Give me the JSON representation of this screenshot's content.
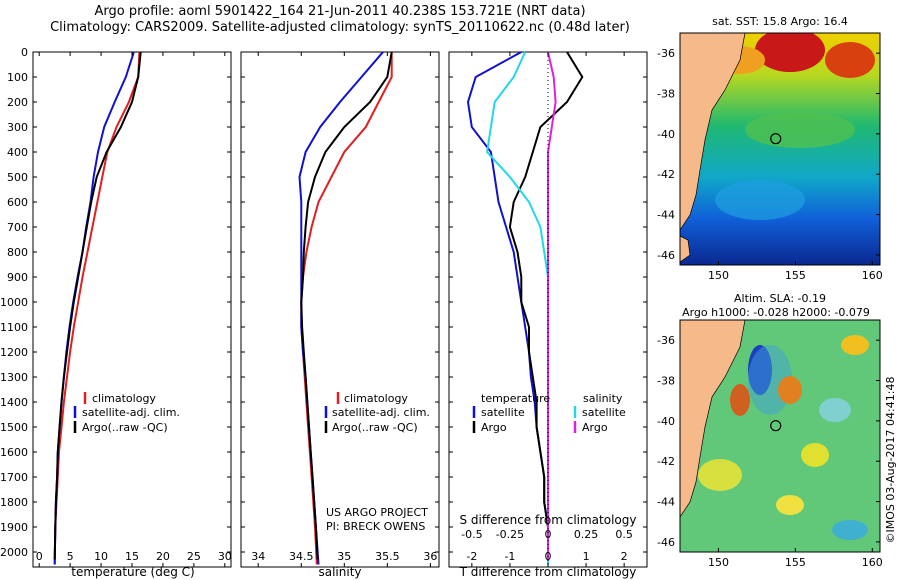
{
  "title": {
    "line1": "Argo profile: aoml 5901422_164 21-Jun-2011 40.238S 153.721E (NRT data)",
    "line2": "Climatology: CARS2009. Satellite-adjusted climatology: synTS_20110622.nc (0.48d later)"
  },
  "colors": {
    "climatology": "#e02020",
    "satellite": "#1010d0",
    "argo": "#000000",
    "sal_satellite": "#20d8e8",
    "sal_argo": "#e020e0"
  },
  "depth_axis": {
    "ticks": [
      0,
      100,
      200,
      300,
      400,
      500,
      600,
      700,
      800,
      900,
      1000,
      1100,
      1200,
      1300,
      1400,
      1500,
      1600,
      1700,
      1800,
      1900,
      2000
    ],
    "lim": [
      0,
      2060
    ],
    "reversed": true
  },
  "legend": {
    "climatology": "climatology",
    "satellite": "satellite-adj. clim.",
    "argo": "Argo(..raw -QC)"
  },
  "legend3": {
    "temperature": "temperature",
    "salinity": "salinity",
    "t_satellite": "satellite",
    "t_argo": "Argo",
    "s_satellite": "satellite",
    "s_argo": "Argo"
  },
  "project": {
    "line1": "US ARGO PROJECT",
    "line2": "PI: BRECK OWENS"
  },
  "map1": {
    "title": "sat. SST: 15.8  Argo: 16.4",
    "lat_ticks": [
      "-36",
      "-38",
      "-40",
      "-42",
      "-44",
      "-46"
    ],
    "lon_ticks": [
      "150",
      "155",
      "160"
    ],
    "marker": {
      "lon": 153.721,
      "lat": -40.238
    }
  },
  "map2": {
    "title1": "Altim. SLA: -0.19",
    "title2": "Argo h1000: -0.028 h2000: -0.079",
    "lat_ticks": [
      "-36",
      "-38",
      "-40",
      "-42",
      "-44",
      "-46"
    ],
    "lon_ticks": [
      "150",
      "155",
      "160"
    ],
    "marker": {
      "lon": 153.721,
      "lat": -40.238
    }
  },
  "copyright": "©IMOS 03-Aug-2017 04:41:48",
  "chart_data": [
    {
      "type": "line",
      "xlabel": "temperature (deg C)",
      "ylabel": "",
      "xlim": [
        -1,
        31
      ],
      "xticks": [
        0,
        5,
        10,
        15,
        20,
        25,
        30
      ],
      "series": [
        {
          "name": "climatology",
          "x": [
            16.2,
            16.0,
            14.5,
            12.5,
            11.0,
            10.2,
            9.4,
            8.6,
            7.8,
            7.0,
            6.3,
            5.6,
            5.0,
            4.5,
            4.0,
            3.6,
            3.2,
            3.0,
            2.8,
            2.6,
            2.5
          ],
          "y": [
            0,
            100,
            200,
            300,
            400,
            500,
            600,
            700,
            800,
            900,
            1000,
            1100,
            1200,
            1300,
            1400,
            1500,
            1600,
            1700,
            1800,
            1900,
            2050
          ]
        },
        {
          "name": "satellite-adj. clim.",
          "x": [
            15.3,
            14.0,
            12.2,
            10.5,
            9.5,
            8.8,
            8.3,
            7.6,
            7.0,
            6.2,
            5.5,
            4.9,
            4.4,
            4.0,
            3.6,
            3.3,
            3.0,
            2.9,
            2.7,
            2.6,
            2.5
          ],
          "y": [
            0,
            100,
            200,
            300,
            400,
            500,
            600,
            700,
            800,
            900,
            1000,
            1100,
            1200,
            1300,
            1400,
            1500,
            1600,
            1700,
            1800,
            1900,
            2050
          ]
        },
        {
          "name": "Argo(..raw -QC)",
          "x": [
            16.4,
            16.0,
            15.0,
            13.2,
            10.9,
            9.3,
            8.4,
            7.7,
            7.0,
            6.3,
            5.6,
            5.0,
            4.5,
            4.0,
            3.6,
            3.3,
            3.0,
            2.9,
            2.7,
            2.6,
            2.5
          ],
          "y": [
            0,
            100,
            200,
            300,
            400,
            500,
            600,
            700,
            800,
            900,
            1000,
            1100,
            1200,
            1300,
            1400,
            1500,
            1600,
            1700,
            1800,
            1900,
            2030
          ]
        }
      ]
    },
    {
      "type": "line",
      "xlabel": "salinity",
      "ylabel": "",
      "xlim": [
        33.8,
        36.1
      ],
      "xticks": [
        34,
        34.5,
        35,
        35.5,
        36
      ],
      "series": [
        {
          "name": "climatology",
          "x": [
            35.55,
            35.55,
            35.4,
            35.25,
            35.0,
            34.85,
            34.7,
            34.62,
            34.56,
            34.52,
            34.5,
            34.5,
            34.52,
            34.54,
            34.56,
            34.58,
            34.6,
            34.62,
            34.64,
            34.66,
            34.68
          ],
          "y": [
            0,
            100,
            200,
            300,
            400,
            500,
            600,
            700,
            800,
            900,
            1000,
            1100,
            1200,
            1300,
            1400,
            1500,
            1600,
            1700,
            1800,
            1900,
            2050
          ]
        },
        {
          "name": "satellite-adj. clim.",
          "x": [
            35.45,
            35.2,
            34.95,
            34.72,
            34.55,
            34.48,
            34.5,
            34.5,
            34.5,
            34.5,
            34.5,
            34.5,
            34.52,
            34.55,
            34.57,
            34.59,
            34.61,
            34.63,
            34.65,
            34.67,
            34.7
          ],
          "y": [
            0,
            100,
            200,
            300,
            400,
            500,
            600,
            700,
            800,
            900,
            1000,
            1100,
            1200,
            1300,
            1400,
            1500,
            1600,
            1700,
            1800,
            1900,
            2050
          ]
        },
        {
          "name": "Argo(..raw -QC)",
          "x": [
            35.55,
            35.5,
            35.3,
            35.0,
            34.78,
            34.66,
            34.58,
            34.55,
            34.53,
            34.52,
            34.5,
            34.51,
            34.53,
            34.55,
            34.57,
            34.59,
            34.61,
            34.63,
            34.65,
            34.67,
            34.69
          ],
          "y": [
            0,
            100,
            200,
            300,
            400,
            500,
            600,
            700,
            800,
            900,
            1000,
            1100,
            1200,
            1300,
            1400,
            1500,
            1600,
            1700,
            1800,
            1900,
            2030
          ]
        }
      ]
    },
    {
      "type": "line",
      "xlabel": "T difference from climatology",
      "x2label": "S difference from climatology",
      "ylabel": "",
      "xlim": [
        -2.6,
        2.6
      ],
      "xticks": [
        -2,
        -1,
        0,
        1,
        2
      ],
      "x2ticks": [
        "-0.5",
        "-0.25",
        "0",
        "0.25",
        "0.5"
      ],
      "series": [
        {
          "name": "T satellite",
          "x": [
            -0.7,
            -1.9,
            -2.1,
            -2.0,
            -1.5,
            -1.4,
            -1.3,
            -1.1,
            -0.9,
            -0.8,
            -0.7,
            -0.6,
            -0.5,
            -0.45,
            -0.35,
            -0.3,
            -0.2,
            -0.1,
            -0.1,
            0,
            0
          ],
          "y": [
            0,
            100,
            200,
            300,
            400,
            500,
            600,
            700,
            800,
            900,
            1000,
            1100,
            1200,
            1300,
            1400,
            1500,
            1600,
            1700,
            1800,
            1900,
            2050
          ]
        },
        {
          "name": "T Argo",
          "x": [
            0.5,
            0.9,
            0.5,
            -0.2,
            -0.4,
            -0.6,
            -0.9,
            -1.0,
            -0.8,
            -0.7,
            -0.7,
            -0.5,
            -0.5,
            -0.4,
            -0.3,
            -0.3,
            -0.2,
            -0.1,
            -0.1,
            0,
            0
          ],
          "y": [
            0,
            100,
            200,
            300,
            400,
            500,
            600,
            700,
            800,
            900,
            1000,
            1100,
            1200,
            1300,
            1400,
            1500,
            1600,
            1700,
            1800,
            1900,
            2030
          ]
        },
        {
          "name": "S satellite",
          "x": [
            -0.6,
            -0.9,
            -1.4,
            -1.5,
            -1.6,
            -1.0,
            -0.5,
            -0.2,
            -0.1,
            0,
            0,
            0,
            0,
            0,
            0,
            0,
            0,
            0,
            0,
            0,
            0
          ],
          "y": [
            0,
            100,
            200,
            300,
            400,
            500,
            600,
            700,
            800,
            900,
            1000,
            1100,
            1200,
            1300,
            1400,
            1500,
            1600,
            1700,
            1800,
            1900,
            2050
          ]
        },
        {
          "name": "S Argo",
          "x": [
            0,
            0.15,
            0.2,
            0.1,
            0,
            0,
            0,
            0,
            0,
            0,
            0,
            0,
            0,
            0,
            0,
            0,
            0,
            0,
            0,
            0,
            0
          ],
          "y": [
            0,
            100,
            200,
            300,
            400,
            500,
            600,
            700,
            800,
            900,
            1000,
            1100,
            1200,
            1300,
            1400,
            1500,
            1600,
            1700,
            1800,
            1900,
            2030
          ]
        }
      ]
    }
  ]
}
